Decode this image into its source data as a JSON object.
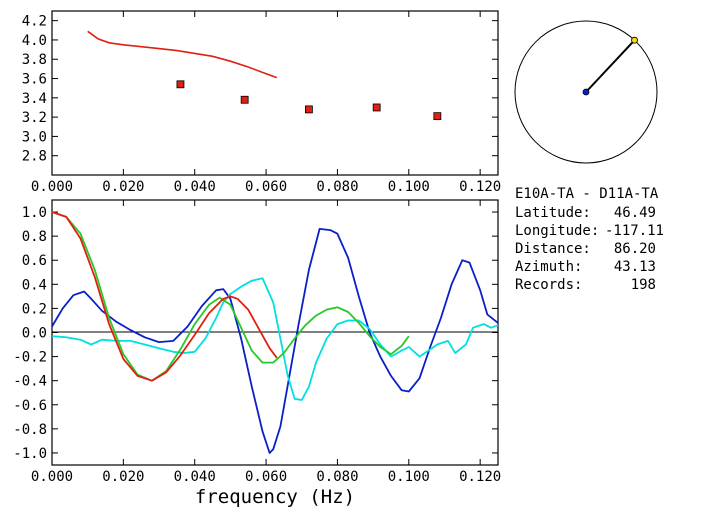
{
  "chart_data": [
    {
      "type": "scatter",
      "xlim": [
        0.0,
        0.125
      ],
      "ylim": [
        2.6,
        4.3
      ],
      "x_ticks": [
        "0.000",
        "0.020",
        "0.040",
        "0.060",
        "0.080",
        "0.100",
        "0.120"
      ],
      "y_ticks": [
        "2.8",
        "3.0",
        "3.2",
        "3.4",
        "3.6",
        "3.8",
        "4.0",
        "4.2"
      ],
      "series": [
        {
          "color": "#e02010",
          "kind": "line",
          "x": [
            0.01,
            0.013,
            0.016,
            0.02,
            0.025,
            0.03,
            0.035,
            0.04,
            0.045,
            0.05,
            0.055,
            0.06,
            0.063
          ],
          "y": [
            4.09,
            4.01,
            3.97,
            3.95,
            3.93,
            3.91,
            3.89,
            3.86,
            3.83,
            3.78,
            3.72,
            3.65,
            3.61
          ]
        },
        {
          "color": "#e02010",
          "kind": "points",
          "x": [
            0.036,
            0.054,
            0.072,
            0.091,
            0.108
          ],
          "y": [
            3.54,
            3.38,
            3.28,
            3.3,
            3.21
          ]
        }
      ]
    },
    {
      "type": "line",
      "xlim": [
        0.0,
        0.125
      ],
      "ylim": [
        -1.1,
        1.1
      ],
      "x_ticks": [
        "0.000",
        "0.020",
        "0.040",
        "0.060",
        "0.080",
        "0.100",
        "0.120"
      ],
      "y_ticks": [
        "1.0",
        "0.8",
        "0.6",
        "0.4",
        "0.2",
        "0.0",
        "-0.2",
        "-0.4",
        "-0.6",
        "-0.8",
        "-1.0"
      ],
      "xlabel": "frequency (Hz)",
      "series": [
        {
          "color": "#0a1fc8",
          "x": [
            0.0,
            0.003,
            0.006,
            0.009,
            0.011,
            0.014,
            0.018,
            0.022,
            0.026,
            0.03,
            0.034,
            0.038,
            0.042,
            0.046,
            0.048,
            0.05,
            0.053,
            0.056,
            0.059,
            0.061,
            0.062,
            0.064,
            0.066,
            0.069,
            0.072,
            0.075,
            0.078,
            0.08,
            0.083,
            0.086,
            0.089,
            0.092,
            0.095,
            0.098,
            0.1,
            0.103,
            0.106,
            0.109,
            0.112,
            0.115,
            0.117,
            0.12,
            0.122,
            0.125
          ],
          "y": [
            0.05,
            0.2,
            0.31,
            0.34,
            0.28,
            0.18,
            0.09,
            0.02,
            -0.04,
            -0.08,
            -0.07,
            0.05,
            0.22,
            0.35,
            0.36,
            0.28,
            -0.05,
            -0.45,
            -0.82,
            -1.0,
            -0.97,
            -0.78,
            -0.45,
            0.05,
            0.52,
            0.86,
            0.85,
            0.82,
            0.62,
            0.3,
            0.0,
            -0.2,
            -0.36,
            -0.48,
            -0.49,
            -0.38,
            -0.12,
            0.12,
            0.4,
            0.6,
            0.58,
            0.35,
            0.15,
            0.08
          ]
        },
        {
          "color": "#00e0e0",
          "x": [
            0.0,
            0.004,
            0.008,
            0.011,
            0.014,
            0.018,
            0.022,
            0.026,
            0.03,
            0.034,
            0.037,
            0.04,
            0.043,
            0.046,
            0.048,
            0.05,
            0.053,
            0.056,
            0.059,
            0.062,
            0.064,
            0.066,
            0.068,
            0.07,
            0.072,
            0.074,
            0.077,
            0.08,
            0.083,
            0.086,
            0.089,
            0.092,
            0.095,
            0.098,
            0.1,
            0.103,
            0.106,
            0.108,
            0.111,
            0.113,
            0.116,
            0.118,
            0.121,
            0.123,
            0.125
          ],
          "y": [
            -0.03,
            -0.04,
            -0.06,
            -0.1,
            -0.06,
            -0.07,
            -0.07,
            -0.1,
            -0.13,
            -0.16,
            -0.17,
            -0.16,
            -0.05,
            0.12,
            0.25,
            0.32,
            0.38,
            0.43,
            0.45,
            0.25,
            -0.05,
            -0.35,
            -0.55,
            -0.56,
            -0.45,
            -0.25,
            -0.05,
            0.07,
            0.1,
            0.1,
            0.03,
            -0.1,
            -0.2,
            -0.15,
            -0.12,
            -0.2,
            -0.14,
            -0.1,
            -0.07,
            -0.17,
            -0.1,
            0.04,
            0.07,
            0.04,
            0.06
          ]
        },
        {
          "color": "#28c828",
          "x": [
            0.0,
            0.004,
            0.008,
            0.012,
            0.016,
            0.02,
            0.024,
            0.028,
            0.032,
            0.036,
            0.04,
            0.044,
            0.047,
            0.05,
            0.053,
            0.056,
            0.059,
            0.062,
            0.065,
            0.068,
            0.071,
            0.074,
            0.077,
            0.08,
            0.083,
            0.086,
            0.089,
            0.092,
            0.095,
            0.098,
            0.1
          ],
          "y": [
            1.0,
            0.96,
            0.82,
            0.52,
            0.12,
            -0.18,
            -0.35,
            -0.4,
            -0.32,
            -0.14,
            0.07,
            0.23,
            0.29,
            0.23,
            0.04,
            -0.15,
            -0.25,
            -0.25,
            -0.17,
            -0.05,
            0.06,
            0.14,
            0.19,
            0.21,
            0.17,
            0.08,
            -0.03,
            -0.12,
            -0.18,
            -0.11,
            -0.03
          ]
        },
        {
          "color": "#e02010",
          "x": [
            0.0,
            0.004,
            0.008,
            0.012,
            0.016,
            0.02,
            0.024,
            0.028,
            0.032,
            0.036,
            0.04,
            0.044,
            0.048,
            0.05,
            0.052,
            0.055,
            0.058,
            0.061,
            0.063
          ],
          "y": [
            1.0,
            0.96,
            0.78,
            0.46,
            0.07,
            -0.22,
            -0.36,
            -0.4,
            -0.33,
            -0.19,
            -0.02,
            0.16,
            0.28,
            0.3,
            0.28,
            0.19,
            0.03,
            -0.13,
            -0.21
          ]
        }
      ]
    }
  ],
  "station_plot": {
    "azimuth_deg": 43.13,
    "center_color": "#0a1fc8",
    "edge_color": "#ffd800"
  },
  "info": {
    "title": "E10A-TA - D11A-TA",
    "latitude_label": "Latitude:",
    "latitude_value": "46.49",
    "longitude_label": "Longitude:",
    "longitude_value": "-117.11",
    "distance_label": "Distance:",
    "distance_value": "86.20",
    "azimuth_label": "Azimuth:",
    "azimuth_value": "43.13",
    "records_label": "Records:",
    "records_value": "198"
  }
}
